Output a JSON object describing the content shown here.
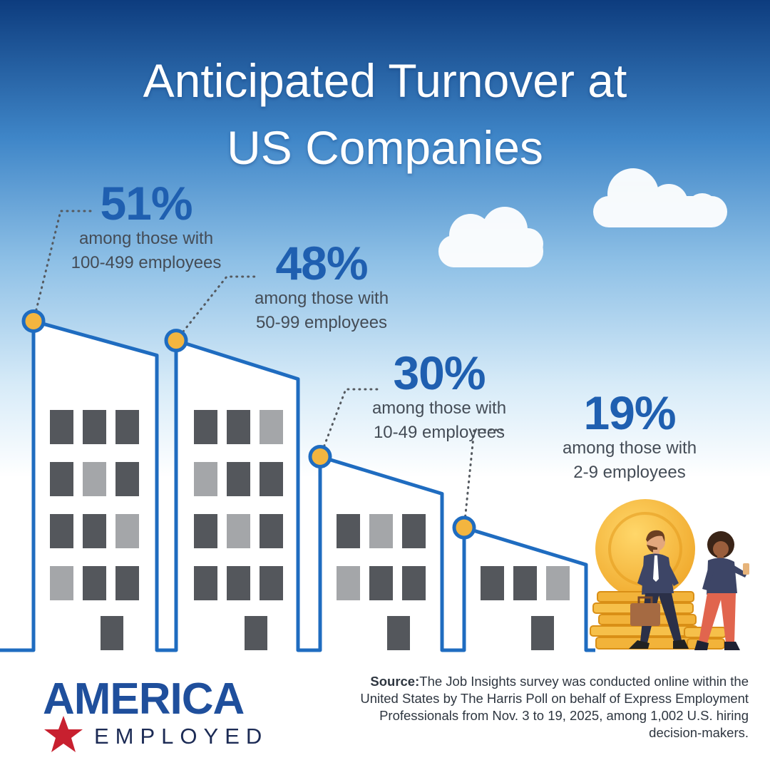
{
  "title_line1": "Anticipated Turnover at",
  "title_line2": "US Companies",
  "chart_data": {
    "type": "bar",
    "title": "Anticipated Turnover at US Companies",
    "categories": [
      "100-499 employees",
      "50-99 employees",
      "10-49 employees",
      "2-9 employees"
    ],
    "values": [
      51,
      48,
      30,
      19
    ],
    "unit": "%",
    "labels": [
      {
        "pct": "51%",
        "text1": "among those with",
        "text2": "100-499 employees"
      },
      {
        "pct": "48%",
        "text1": "among those with",
        "text2": "50-99 employees"
      },
      {
        "pct": "30%",
        "text1": "among those with",
        "text2": "10-49 employees"
      },
      {
        "pct": "19%",
        "text1": "among those with",
        "text2": "2-9 employees"
      }
    ]
  },
  "source": {
    "label": "Source:",
    "text": "The Job Insights survey was conducted online within the United States by The Harris Poll on behalf of Express Employment Professionals from Nov. 3 to 19, 2025, among 1,002 U.S. hiring decision-makers."
  },
  "logo": {
    "main": "AMERICA",
    "sub": "EMPLOYED"
  },
  "colors": {
    "sky_top": "#0d3c7e",
    "sky_bottom": "#ffffff",
    "outline": "#1f6cc0",
    "accent_number": "#1f5fb0",
    "marker": "#f3b53f",
    "window_dark": "#54575c",
    "window_light": "#a4a6a9",
    "star_red": "#c8202f"
  }
}
